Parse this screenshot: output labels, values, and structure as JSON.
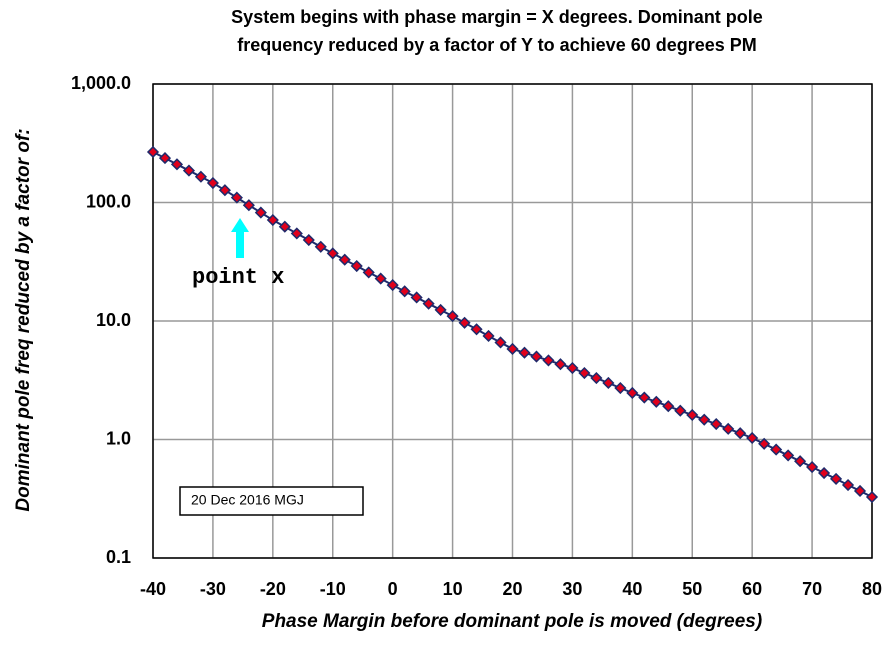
{
  "chart_data": {
    "type": "scatter",
    "title": [
      "System begins with phase margin = X degrees.  Dominant pole",
      "frequency reduced by a factor of Y to achieve 60 degrees PM"
    ],
    "xlabel": "Phase Margin before dominant pole is moved (degrees)",
    "ylabel": "Dominant pole freq reduced by a factor of:",
    "x": [
      -40,
      -38,
      -36,
      -34,
      -32,
      -30,
      -28,
      -26,
      -24,
      -22,
      -20,
      -18,
      -16,
      -14,
      -12,
      -10,
      -8,
      -6,
      -4,
      -2,
      0,
      2,
      4,
      6,
      8,
      10,
      12,
      14,
      16,
      18,
      20,
      22,
      24,
      26,
      28,
      30,
      32,
      34,
      36,
      38,
      40,
      42,
      44,
      46,
      48,
      50,
      52,
      54,
      56,
      58,
      60,
      62,
      64,
      66,
      68,
      70,
      72,
      74,
      76,
      78,
      80
    ],
    "values": [
      267,
      237,
      210,
      186,
      165,
      146,
      127,
      110,
      94.9,
      82.2,
      71.1,
      62.5,
      54.8,
      48.2,
      42.3,
      37.2,
      32.9,
      29.1,
      25.7,
      22.8,
      20.1,
      17.8,
      15.8,
      14.0,
      12.4,
      11.0,
      9.66,
      8.51,
      7.48,
      6.59,
      5.81,
      5.4,
      5.01,
      4.65,
      4.32,
      4.01,
      3.64,
      3.3,
      3.0,
      2.72,
      2.47,
      2.26,
      2.08,
      1.91,
      1.75,
      1.61,
      1.47,
      1.35,
      1.23,
      1.13,
      1.03,
      0.92,
      0.822,
      0.734,
      0.656,
      0.586,
      0.521,
      0.465,
      0.413,
      0.368,
      0.327
    ],
    "color": "#e0001b",
    "edge_color": "#1f2a6b",
    "xlim": [
      -40,
      80
    ],
    "xticks": [
      -40,
      -30,
      -20,
      -10,
      0,
      10,
      20,
      30,
      40,
      50,
      60,
      70,
      80
    ],
    "ylim": [
      0.1,
      1000
    ],
    "log_y": true,
    "yticks": [
      {
        "value": 0.1,
        "label": "0.1"
      },
      {
        "value": 1,
        "label": "1.0"
      },
      {
        "value": 10,
        "label": "10.0"
      },
      {
        "value": 100,
        "label": "100.0"
      },
      {
        "value": 1000,
        "label": "1,000.0"
      }
    ],
    "grid": true,
    "annotations": [
      "point x",
      "20 Dec 2016  MGJ"
    ]
  }
}
